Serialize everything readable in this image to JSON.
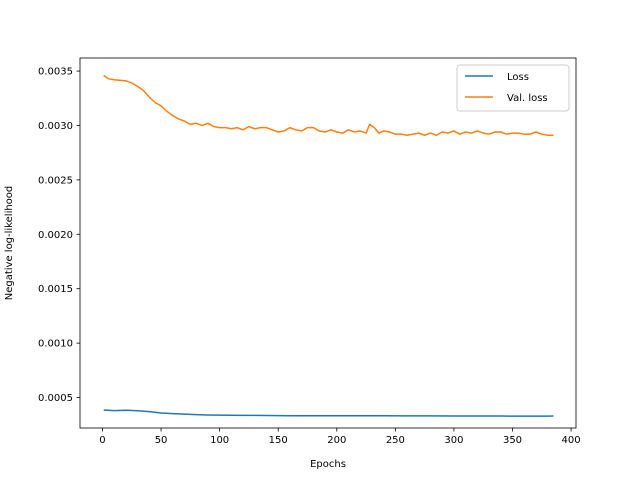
{
  "chart_data": {
    "type": "line",
    "title": "",
    "xlabel": "Epochs",
    "ylabel": "Negative log-likelihood",
    "xlim": [
      -19.2,
      404.2
    ],
    "ylim": [
      0.00022,
      0.00362
    ],
    "xticks": [
      0,
      50,
      100,
      150,
      200,
      250,
      300,
      350,
      400
    ],
    "xtick_labels": [
      "0",
      "50",
      "100",
      "150",
      "200",
      "250",
      "300",
      "350",
      "400"
    ],
    "yticks": [
      0.0005,
      0.001,
      0.0015,
      0.002,
      0.0025,
      0.003,
      0.0035
    ],
    "ytick_labels": [
      "0.0005",
      "0.0010",
      "0.0015",
      "0.0020",
      "0.0025",
      "0.0030",
      "0.0035"
    ],
    "grid": false,
    "legend": "upper right",
    "series": [
      {
        "name": "Loss",
        "color": "#1f77b4",
        "x": [
          1,
          10,
          20,
          30,
          40,
          50,
          60,
          70,
          80,
          90,
          100,
          120,
          140,
          160,
          180,
          200,
          220,
          240,
          260,
          280,
          300,
          320,
          340,
          360,
          370,
          380,
          385
        ],
        "y": [
          0.000385,
          0.00038,
          0.000383,
          0.000378,
          0.00037,
          0.000358,
          0.000352,
          0.000348,
          0.000343,
          0.00034,
          0.000338,
          0.000336,
          0.000335,
          0.000333,
          0.000332,
          0.000333,
          0.000332,
          0.000332,
          0.000331,
          0.000331,
          0.00033,
          0.00033,
          0.00033,
          0.000329,
          0.000329,
          0.000329,
          0.00033
        ]
      },
      {
        "name": "Val. loss",
        "color": "#ff7f0e",
        "x": [
          1,
          5,
          10,
          20,
          25,
          30,
          35,
          40,
          45,
          50,
          55,
          60,
          65,
          70,
          75,
          80,
          85,
          90,
          95,
          100,
          105,
          110,
          115,
          120,
          125,
          130,
          135,
          140,
          145,
          150,
          155,
          160,
          165,
          170,
          175,
          180,
          185,
          190,
          195,
          200,
          205,
          210,
          215,
          220,
          225,
          228,
          232,
          236,
          240,
          245,
          250,
          255,
          260,
          265,
          270,
          275,
          280,
          285,
          290,
          295,
          300,
          305,
          310,
          315,
          320,
          325,
          330,
          335,
          340,
          345,
          350,
          355,
          360,
          365,
          370,
          375,
          380,
          385
        ],
        "y": [
          0.00346,
          0.00343,
          0.00342,
          0.00341,
          0.00339,
          0.00336,
          0.00332,
          0.00326,
          0.00321,
          0.00318,
          0.00313,
          0.00309,
          0.00306,
          0.00304,
          0.00301,
          0.00302,
          0.003,
          0.00302,
          0.00299,
          0.00298,
          0.00298,
          0.00297,
          0.00298,
          0.00296,
          0.00299,
          0.00297,
          0.00298,
          0.00298,
          0.00296,
          0.00294,
          0.00295,
          0.00298,
          0.00296,
          0.00295,
          0.00298,
          0.00298,
          0.00295,
          0.00294,
          0.00296,
          0.00294,
          0.00293,
          0.00296,
          0.00294,
          0.00295,
          0.00293,
          0.00301,
          0.00298,
          0.00293,
          0.00295,
          0.00294,
          0.00292,
          0.00292,
          0.00291,
          0.00292,
          0.00293,
          0.00291,
          0.00293,
          0.00291,
          0.00294,
          0.00293,
          0.00295,
          0.00292,
          0.00294,
          0.00293,
          0.00295,
          0.00293,
          0.00292,
          0.00294,
          0.00294,
          0.00292,
          0.00293,
          0.00293,
          0.00292,
          0.00292,
          0.00294,
          0.00292,
          0.00291,
          0.00291
        ]
      }
    ]
  }
}
